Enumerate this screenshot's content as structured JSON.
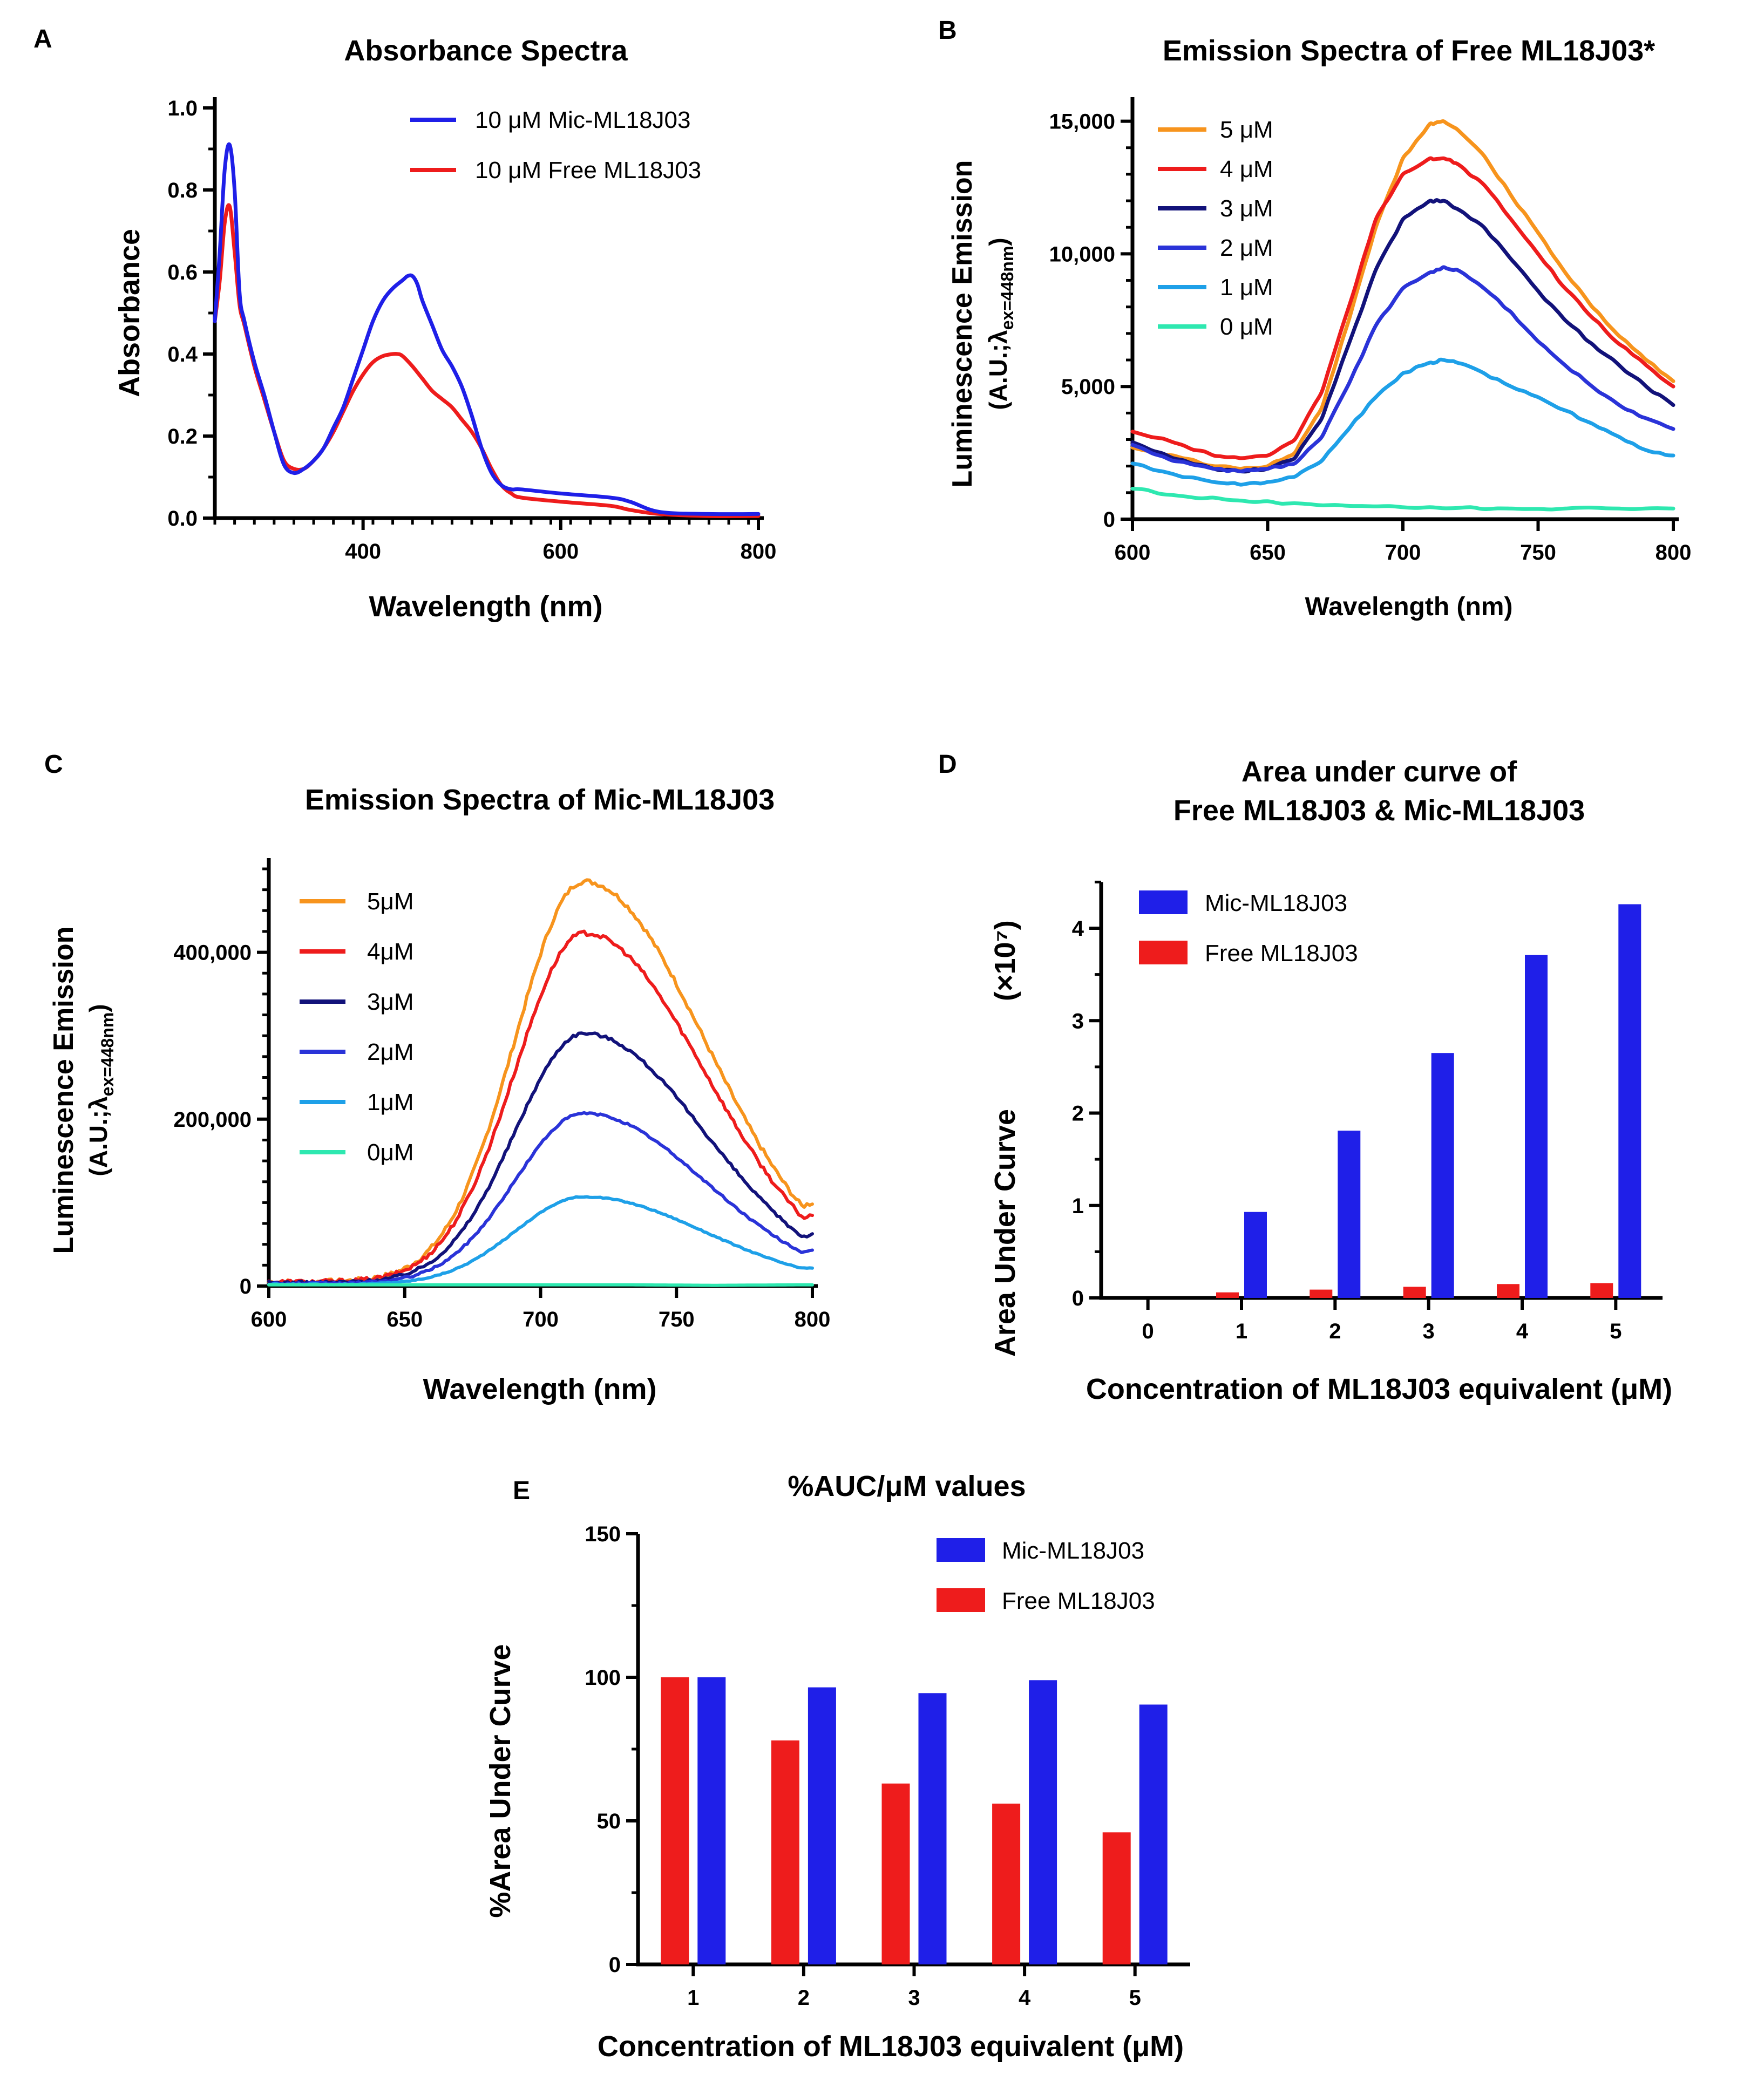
{
  "colors": {
    "blue": "#1f1fe8",
    "red": "#ee1c1c",
    "orange": "#f7941d",
    "navy": "#12127a",
    "mid_blue": "#2a33d8",
    "light_blue": "#1ea0e8",
    "teal": "#2ee8b0"
  },
  "chart_data": [
    {
      "id": "A",
      "type": "line",
      "panel_label": "A",
      "title": "Absorbance Spectra",
      "xlabel": "Wavelength (nm)",
      "ylabel": "Absorbance",
      "xlim": [
        250,
        800
      ],
      "ylim": [
        0,
        1.0
      ],
      "xticks": [
        400,
        600,
        800
      ],
      "xtick_labels": [
        "400",
        "600",
        "800"
      ],
      "yticks": [
        0,
        0.2,
        0.4,
        0.6,
        0.8,
        1.0
      ],
      "ytick_labels": [
        "0.0",
        "0.2",
        "0.4",
        "0.6",
        "0.8",
        "1.0"
      ],
      "series": [
        {
          "name": "10 μM Mic-ML18J03",
          "color": "#1f1fe8",
          "x": [
            250,
            255,
            260,
            265,
            270,
            275,
            280,
            290,
            300,
            310,
            320,
            330,
            340,
            350,
            360,
            370,
            380,
            390,
            400,
            410,
            420,
            430,
            440,
            445,
            450,
            455,
            460,
            470,
            480,
            490,
            500,
            510,
            520,
            530,
            540,
            550,
            560,
            600,
            650,
            670,
            700,
            750,
            800
          ],
          "y": [
            0.48,
            0.65,
            0.85,
            0.91,
            0.8,
            0.55,
            0.48,
            0.38,
            0.3,
            0.21,
            0.13,
            0.11,
            0.12,
            0.14,
            0.17,
            0.22,
            0.27,
            0.34,
            0.41,
            0.48,
            0.53,
            0.56,
            0.58,
            0.59,
            0.59,
            0.57,
            0.53,
            0.47,
            0.41,
            0.37,
            0.32,
            0.25,
            0.17,
            0.11,
            0.08,
            0.07,
            0.07,
            0.06,
            0.05,
            0.04,
            0.015,
            0.01,
            0.01
          ]
        },
        {
          "name": "10 μM Free ML18J03",
          "color": "#ee1c1c",
          "x": [
            250,
            255,
            260,
            265,
            270,
            275,
            280,
            290,
            300,
            310,
            320,
            330,
            340,
            350,
            360,
            370,
            380,
            390,
            400,
            410,
            420,
            430,
            435,
            440,
            450,
            460,
            470,
            480,
            490,
            500,
            510,
            520,
            530,
            540,
            550,
            560,
            600,
            650,
            670,
            700,
            750,
            800
          ],
          "y": [
            0.48,
            0.58,
            0.72,
            0.76,
            0.65,
            0.52,
            0.47,
            0.37,
            0.29,
            0.21,
            0.14,
            0.12,
            0.12,
            0.14,
            0.17,
            0.21,
            0.26,
            0.31,
            0.35,
            0.38,
            0.395,
            0.4,
            0.4,
            0.395,
            0.37,
            0.34,
            0.31,
            0.29,
            0.27,
            0.24,
            0.21,
            0.17,
            0.12,
            0.08,
            0.06,
            0.05,
            0.04,
            0.03,
            0.02,
            0.01,
            0.005,
            0.005
          ]
        }
      ],
      "legend": [
        "10 μM Mic-ML18J03",
        "10 μM Free ML18J03"
      ]
    },
    {
      "id": "B",
      "type": "line",
      "panel_label": "B",
      "title": "Emission Spectra of Free ML18J03*",
      "xlabel": "Wavelength (nm)",
      "ylabel_line1": "Luminescence Emission",
      "ylabel_line2": "(A.U.;λex=448nm)",
      "xlim": [
        600,
        800
      ],
      "ylim": [
        0,
        15500
      ],
      "xticks": [
        600,
        650,
        700,
        750,
        800
      ],
      "xtick_labels": [
        "600",
        "650",
        "700",
        "750",
        "800"
      ],
      "yticks": [
        0,
        5000,
        10000,
        15000
      ],
      "ytick_labels": [
        "0",
        "5,000",
        "10,000",
        "15,000"
      ],
      "series": [
        {
          "name": "5 μM",
          "color": "#f7941d",
          "x": [
            600,
            615,
            630,
            640,
            650,
            660,
            670,
            680,
            690,
            700,
            710,
            715,
            720,
            730,
            740,
            750,
            760,
            770,
            780,
            790,
            800
          ],
          "y": [
            2700,
            2400,
            2000,
            1900,
            2000,
            2500,
            4200,
            7500,
            11000,
            13600,
            14900,
            15000,
            14700,
            13700,
            12200,
            10800,
            9300,
            8000,
            6900,
            6000,
            5200
          ]
        },
        {
          "name": "4 μM",
          "color": "#ee1c1c",
          "x": [
            600,
            615,
            630,
            640,
            650,
            660,
            670,
            680,
            690,
            700,
            710,
            715,
            720,
            730,
            740,
            750,
            760,
            770,
            780,
            790,
            800
          ],
          "y": [
            3300,
            2900,
            2400,
            2300,
            2400,
            3000,
            4800,
            8000,
            11300,
            13000,
            13600,
            13600,
            13400,
            12600,
            11300,
            10000,
            8700,
            7600,
            6600,
            5800,
            5000
          ]
        },
        {
          "name": "3 μM",
          "color": "#12127a",
          "x": [
            600,
            615,
            630,
            640,
            650,
            660,
            670,
            680,
            690,
            700,
            710,
            715,
            720,
            730,
            740,
            750,
            760,
            770,
            780,
            790,
            800
          ],
          "y": [
            2900,
            2300,
            1900,
            1800,
            1900,
            2300,
            3800,
            6600,
            9400,
            11300,
            12000,
            12000,
            11700,
            11000,
            9800,
            8600,
            7500,
            6600,
            5800,
            5000,
            4300
          ]
        },
        {
          "name": "2 μM",
          "color": "#2a33d8",
          "x": [
            600,
            615,
            630,
            640,
            650,
            660,
            670,
            680,
            690,
            700,
            710,
            715,
            720,
            730,
            740,
            750,
            760,
            770,
            780,
            790,
            800
          ],
          "y": [
            2800,
            2200,
            1900,
            1800,
            1900,
            2100,
            3100,
            5100,
            7300,
            8700,
            9300,
            9500,
            9400,
            8700,
            7800,
            6700,
            5800,
            5000,
            4300,
            3800,
            3400
          ]
        },
        {
          "name": "1 μM",
          "color": "#1ea0e8",
          "x": [
            600,
            615,
            630,
            640,
            650,
            660,
            670,
            680,
            690,
            700,
            710,
            715,
            720,
            730,
            740,
            750,
            760,
            770,
            780,
            790,
            800
          ],
          "y": [
            2100,
            1700,
            1400,
            1300,
            1400,
            1600,
            2200,
            3400,
            4600,
            5500,
            5900,
            6000,
            5900,
            5500,
            5000,
            4600,
            4100,
            3600,
            3100,
            2600,
            2400
          ]
        },
        {
          "name": "0 μM",
          "color": "#2ee8b0",
          "x": [
            600,
            620,
            640,
            660,
            680,
            700,
            720,
            740,
            760,
            780,
            800
          ],
          "y": [
            1150,
            850,
            700,
            600,
            500,
            450,
            420,
            400,
            400,
            400,
            400
          ]
        }
      ],
      "legend": [
        "5 μM",
        "4 μM",
        "3 μM",
        "2 μM",
        "1 μM",
        "0 μM"
      ]
    },
    {
      "id": "C",
      "type": "line",
      "panel_label": "C",
      "title": "Emission Spectra of Mic-ML18J03",
      "xlabel": "Wavelength (nm)",
      "ylabel_line1": "Luminescence Emission",
      "ylabel_line2": "(A.U.;λex=448nm)",
      "xlim": [
        600,
        800
      ],
      "ylim": [
        0,
        500000
      ],
      "xticks": [
        600,
        650,
        700,
        750,
        800
      ],
      "xtick_labels": [
        "600",
        "650",
        "700",
        "750",
        "800"
      ],
      "yticks": [
        0,
        200000,
        400000
      ],
      "ytick_labels": [
        "0",
        "200,000",
        "400,000"
      ],
      "series": [
        {
          "name": "5μM",
          "color": "#f7941d",
          "peak": 485000,
          "base": 5000,
          "end": 100000
        },
        {
          "name": "4μM",
          "color": "#ee1c1c",
          "peak": 423000,
          "base": 5000,
          "end": 85000
        },
        {
          "name": "3μM",
          "color": "#12127a",
          "peak": 303000,
          "base": 4000,
          "end": 62000
        },
        {
          "name": "2μM",
          "color": "#2a33d8",
          "peak": 207000,
          "base": 3000,
          "end": 42000
        },
        {
          "name": "1μM",
          "color": "#1ea0e8",
          "peak": 107000,
          "base": 2000,
          "end": 22000
        },
        {
          "name": "0μM",
          "color": "#2ee8b0",
          "peak": 1500,
          "base": 1500,
          "end": 1500
        }
      ],
      "legend": [
        "5μM",
        "4μM",
        "3μM",
        "2μM",
        "1μM",
        "0μM"
      ]
    },
    {
      "id": "D",
      "type": "bar",
      "panel_label": "D",
      "title_line1": "Area under curve of",
      "title_line2": "Free ML18J03 & Mic-ML18J03",
      "xlabel": "Concentration of ML18J03 equivalent (μM)",
      "ylabel": "Area Under Curve",
      "ylabel_unit": "(×10⁷)",
      "categories": [
        "0",
        "1",
        "2",
        "3",
        "4",
        "5"
      ],
      "ylim": [
        0,
        4.5
      ],
      "yticks": [
        0,
        1,
        2,
        3,
        4
      ],
      "ytick_labels": [
        "0",
        "1",
        "2",
        "3",
        "4"
      ],
      "series": [
        {
          "name": "Free ML18J03",
          "color": "#ee1c1c",
          "values": [
            0,
            0.06,
            0.09,
            0.12,
            0.15,
            0.16
          ]
        },
        {
          "name": "Mic-ML18J03",
          "color": "#1f1fe8",
          "values": [
            0,
            0.93,
            1.81,
            2.65,
            3.71,
            4.26
          ]
        }
      ],
      "legend": [
        "Mic-ML18J03",
        "Free ML18J03"
      ]
    },
    {
      "id": "E",
      "type": "bar",
      "panel_label": "E",
      "title": "%AUC/μM values",
      "xlabel": "Concentration of ML18J03 equivalent (μM)",
      "ylabel": "%Area Under Curve",
      "categories": [
        "1",
        "2",
        "3",
        "4",
        "5"
      ],
      "ylim": [
        0,
        150
      ],
      "yticks": [
        0,
        50,
        100,
        150
      ],
      "ytick_labels": [
        "0",
        "50",
        "100",
        "150"
      ],
      "series": [
        {
          "name": "Free ML18J03",
          "color": "#ee1c1c",
          "values": [
            100,
            78,
            63,
            56,
            46
          ]
        },
        {
          "name": "Mic-ML18J03",
          "color": "#1f1fe8",
          "values": [
            100,
            96.5,
            94.5,
            99,
            90.5
          ]
        }
      ],
      "legend": [
        "Mic-ML18J03",
        "Free ML18J03"
      ]
    }
  ]
}
